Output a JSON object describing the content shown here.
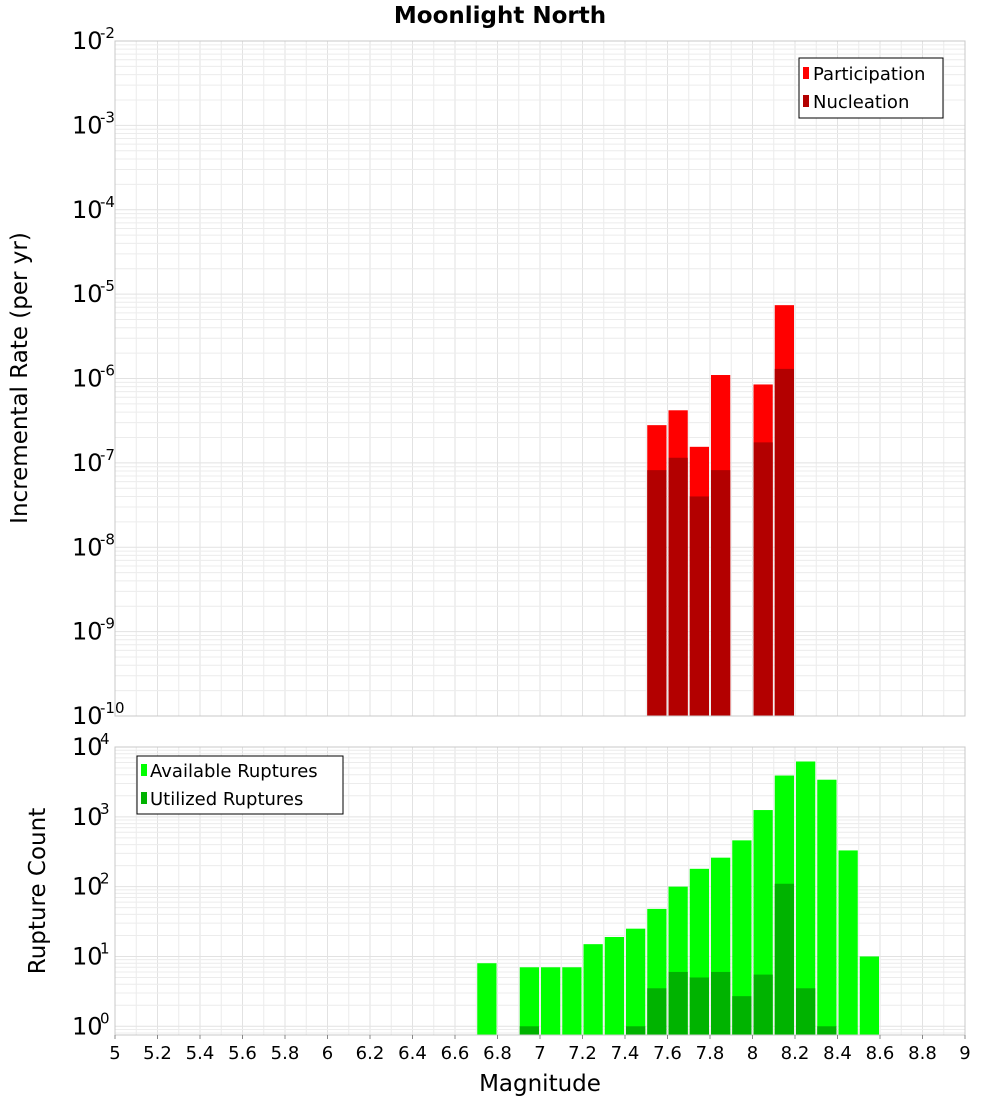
{
  "title": "Moonlight North",
  "x_axis": {
    "label": "Magnitude",
    "ticks": [
      "5",
      "5.2",
      "5.4",
      "5.6",
      "5.8",
      "6",
      "6.2",
      "6.4",
      "6.6",
      "6.8",
      "7",
      "7.2",
      "7.4",
      "7.6",
      "7.8",
      "8",
      "8.2",
      "8.4",
      "8.6",
      "8.8",
      "9"
    ]
  },
  "chart_data": [
    {
      "type": "bar",
      "ylabel": "Incremental Rate (per yr)",
      "yscale": "log",
      "ylim": [
        1e-10,
        0.01
      ],
      "xlim": [
        5,
        9
      ],
      "grid": true,
      "legend_position": "top-right",
      "y_tick_exponents": [
        "-2",
        "-3",
        "-4",
        "-5",
        "-6",
        "-7",
        "-8",
        "-9",
        "-10"
      ],
      "x": [
        7.55,
        7.65,
        7.75,
        7.85,
        8.05,
        8.15
      ],
      "series": [
        {
          "name": "Participation",
          "color": "#ff0000",
          "values": [
            2.8e-07,
            4.2e-07,
            1.55e-07,
            1.1e-06,
            8.5e-07,
            7.4e-06
          ]
        },
        {
          "name": "Nucleation",
          "color": "#b30000",
          "values": [
            8.2e-08,
            1.15e-07,
            4e-08,
            8.2e-08,
            1.75e-07,
            1.3e-06
          ]
        }
      ]
    },
    {
      "type": "bar",
      "ylabel": "Rupture Count",
      "yscale": "log",
      "ylim": [
        0.75,
        10000
      ],
      "xlim": [
        5,
        9
      ],
      "grid": true,
      "legend_position": "top-left",
      "y_tick_exponents": [
        "4",
        "3",
        "2",
        "1",
        "0"
      ],
      "series": [
        {
          "name": "Available Ruptures",
          "color": "#00ff00",
          "x": [
            6.75,
            6.95,
            7.05,
            7.15,
            7.25,
            7.35,
            7.45,
            7.55,
            7.65,
            7.75,
            7.85,
            7.95,
            8.05,
            8.15,
            8.25,
            8.35,
            8.45,
            8.55
          ],
          "values": [
            8,
            7,
            7,
            7,
            15,
            19,
            25,
            48,
            100,
            180,
            260,
            460,
            1250,
            3900,
            6200,
            3400,
            330,
            10
          ]
        },
        {
          "name": "Utilized Ruptures",
          "color": "#00b300",
          "x": [
            6.95,
            7.45,
            7.55,
            7.65,
            7.75,
            7.85,
            7.95,
            8.05,
            8.15,
            8.25,
            8.35
          ],
          "values": [
            1,
            1,
            3.5,
            6,
            5,
            6,
            2.7,
            5.5,
            110,
            3.5,
            1
          ]
        }
      ]
    }
  ]
}
